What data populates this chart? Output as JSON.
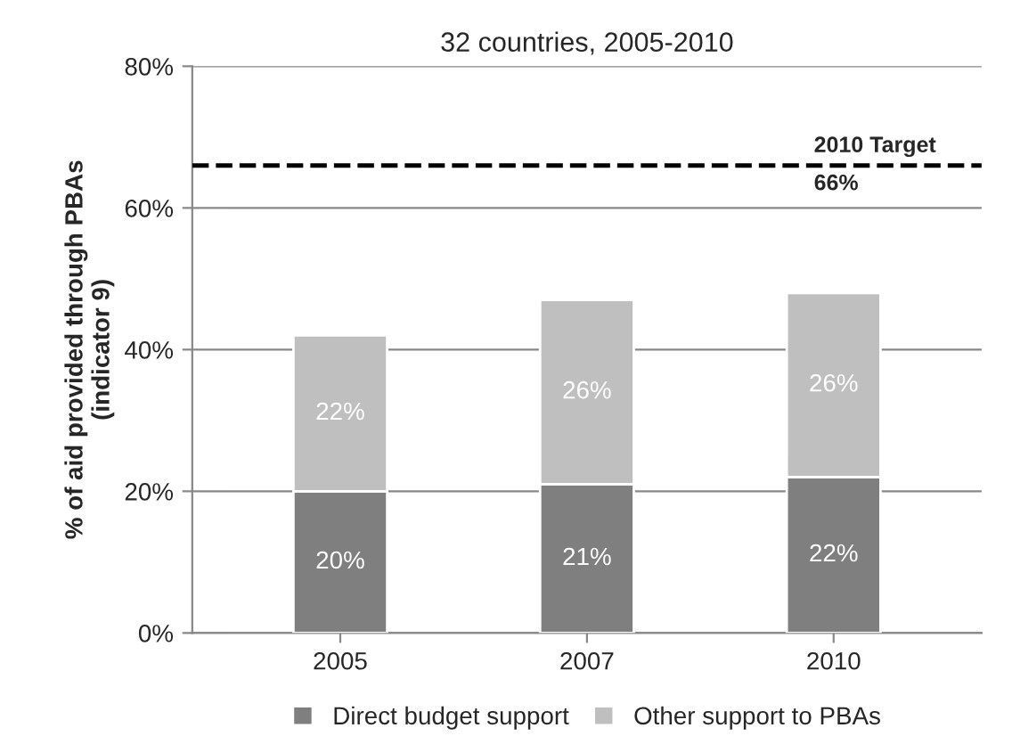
{
  "chart_data": {
    "type": "bar",
    "stacked": true,
    "title": "32 countries, 2005-2010",
    "ylabel": "% of aid provided through PBAs\n(indicator 9)",
    "categories": [
      "2005",
      "2007",
      "2010"
    ],
    "series": [
      {
        "name": "Direct budget support",
        "color": "#7f7f7f",
        "values": [
          20,
          21,
          22
        ],
        "value_labels": [
          "20%",
          "21%",
          "22%"
        ]
      },
      {
        "name": "Other support to PBAs",
        "color": "#bfbfbf",
        "values": [
          22,
          26,
          26
        ],
        "value_labels": [
          "22%",
          "26%",
          "26%"
        ]
      }
    ],
    "ylim": [
      0,
      80
    ],
    "yticks": [
      {
        "value": 0,
        "label": "0%"
      },
      {
        "value": 20,
        "label": "20%"
      },
      {
        "value": 40,
        "label": "40%"
      },
      {
        "value": 60,
        "label": "60%"
      },
      {
        "value": 80,
        "label": "80%"
      }
    ],
    "grid": "y",
    "legend": "bottom",
    "ref_lines": [
      {
        "axis": "y",
        "value": 66,
        "label": "2010 Target\n66%",
        "color": "#000000",
        "line_style": "dashed"
      }
    ]
  }
}
